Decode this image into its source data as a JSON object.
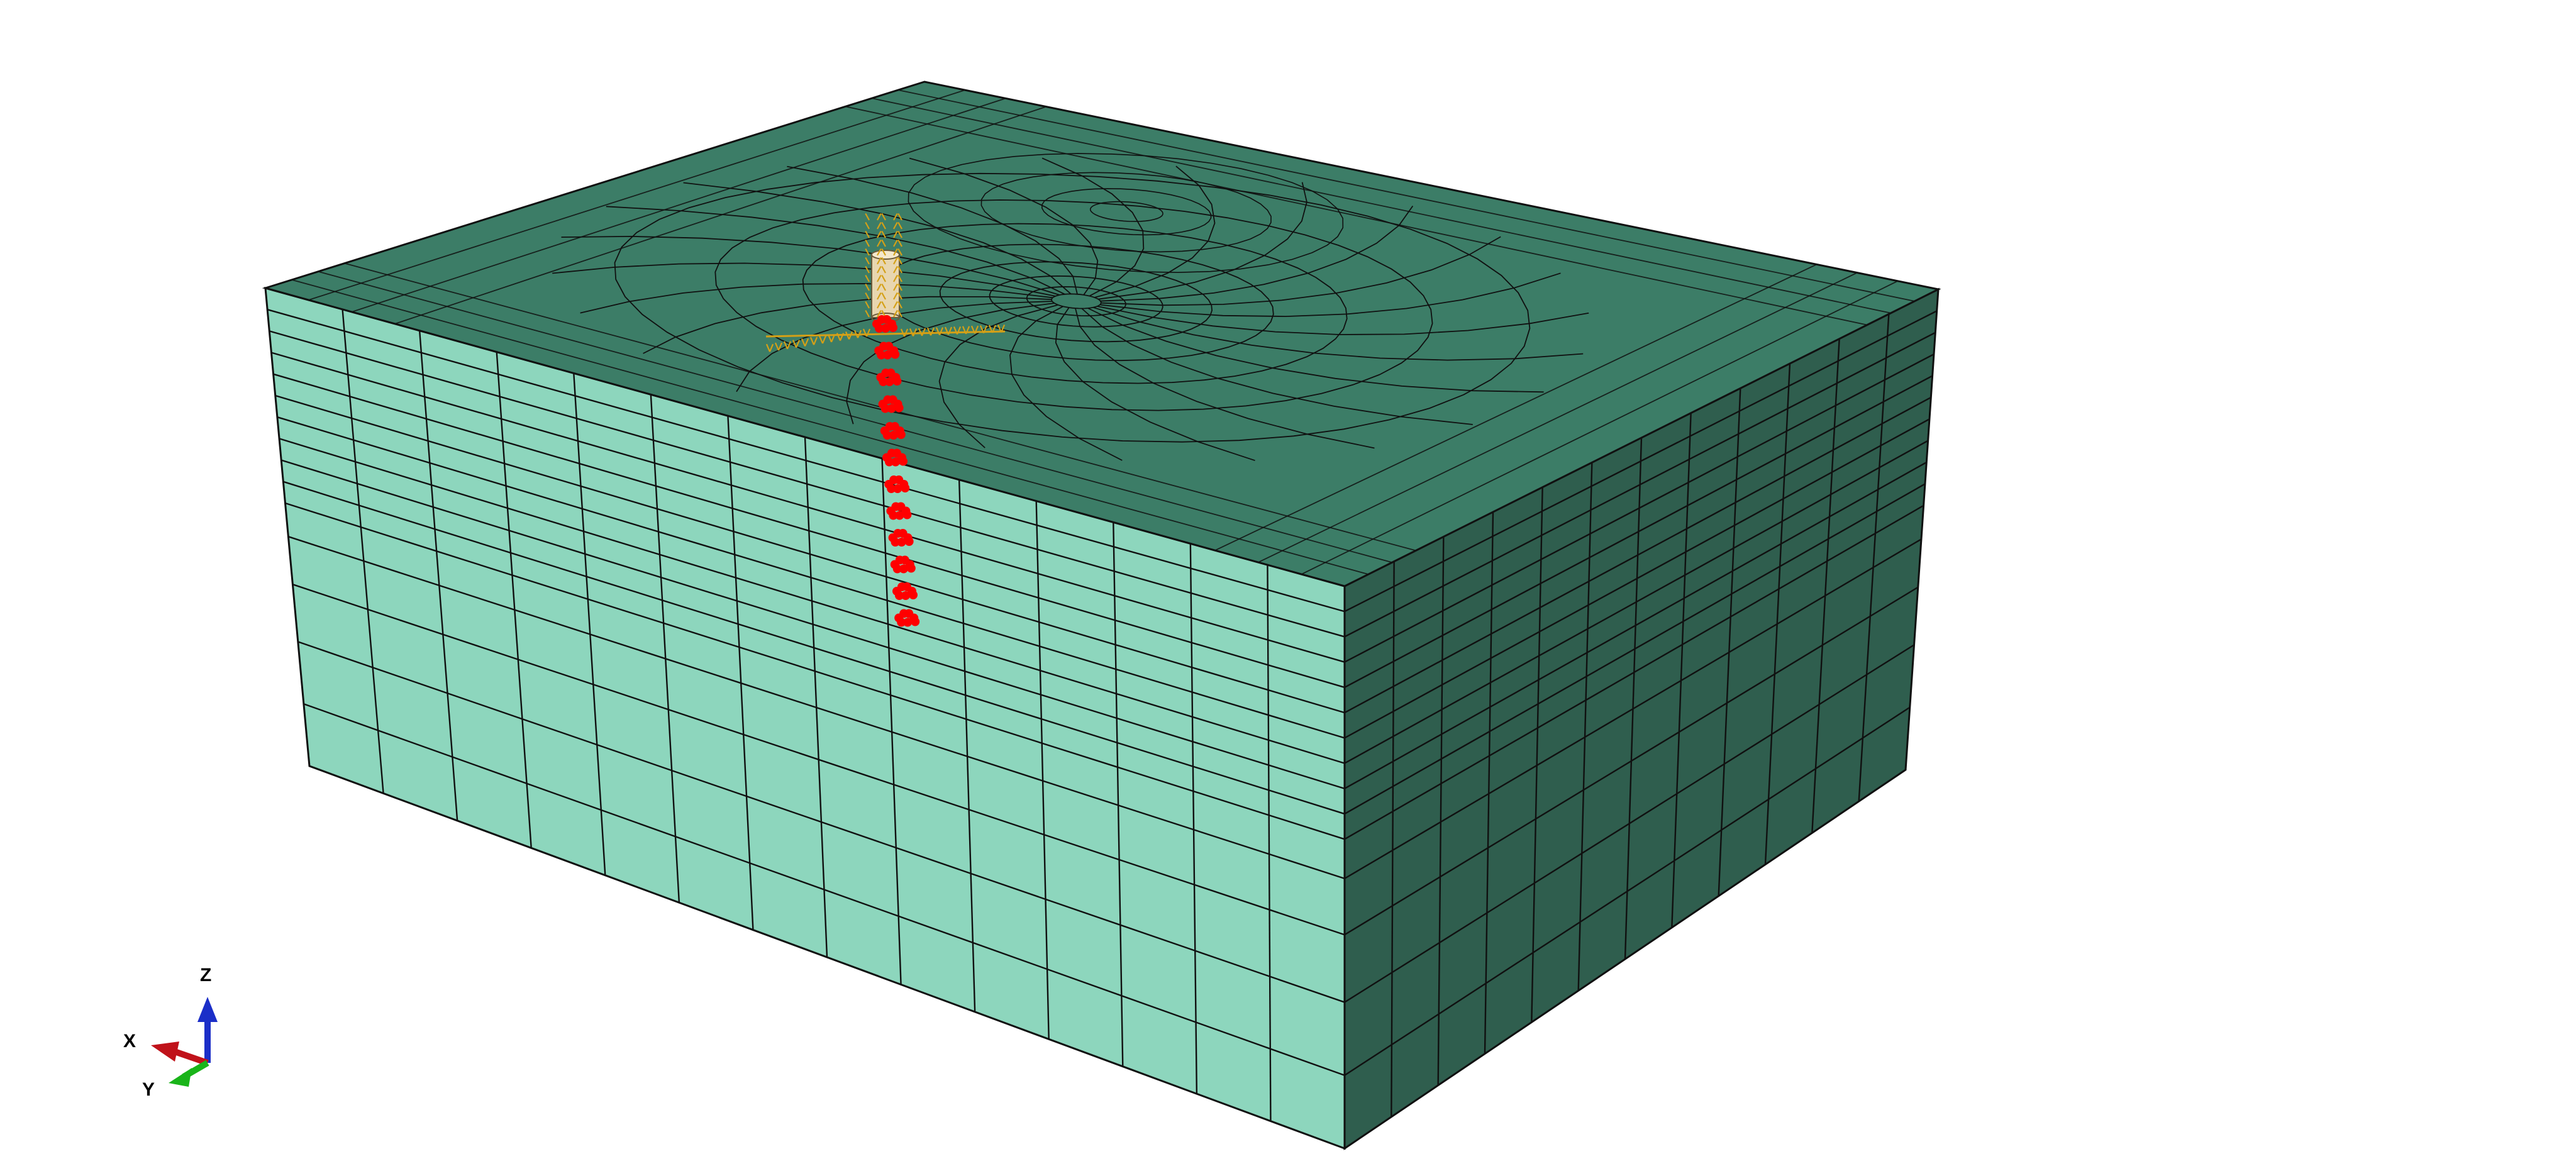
{
  "viewport": {
    "background": "#ffffff",
    "model": {
      "top_face_color": "#3c7d67",
      "left_face_color": "#8dd6bd",
      "right_face_color": "#2f5e4e",
      "mesh_line_color": "#101010",
      "pile_color": "#e8d6b0",
      "constraint_color": "#d4a017",
      "load_marker_color": "#ff0000"
    },
    "triad": {
      "x_label": "X",
      "y_label": "Y",
      "z_label": "Z",
      "x_color": "#c0121a",
      "y_color": "#19b419",
      "z_color": "#1b2ec8"
    }
  }
}
